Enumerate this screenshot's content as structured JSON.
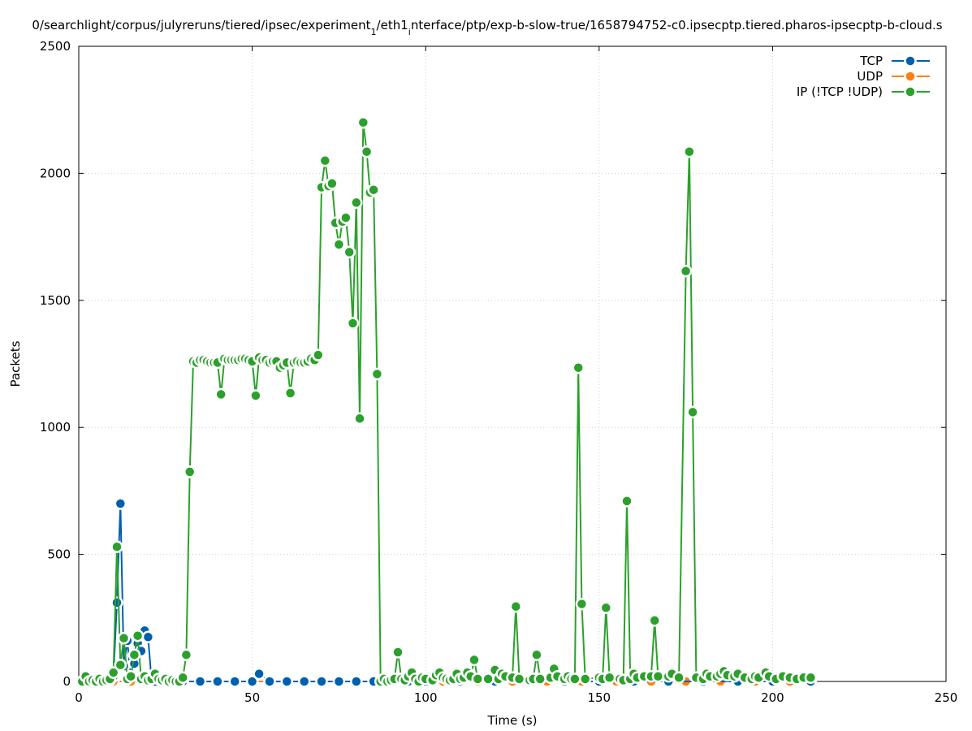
{
  "chart_data": {
    "type": "line",
    "title": "0/searchlight/corpus/julyreruns/tiered/ipsec/experiment_1/eth1_interface/ptp/exp-b-slow-true/1658794752-c0.ipsecptp.tiered.pharos-ipsecptp-b-cloud.s",
    "xlabel": "Time (s)",
    "ylabel": "Packets",
    "xlim": [
      0,
      250
    ],
    "ylim": [
      0,
      2500
    ],
    "xticks": [
      0,
      50,
      100,
      150,
      200,
      250
    ],
    "yticks": [
      0,
      500,
      1000,
      1500,
      2000,
      2500
    ],
    "grid": true,
    "legend_position": "top-right",
    "series": [
      {
        "name": "TCP",
        "color": "#0060ad",
        "points": [
          [
            1,
            0
          ],
          [
            2,
            0
          ],
          [
            3,
            0
          ],
          [
            4,
            0
          ],
          [
            5,
            0
          ],
          [
            6,
            0
          ],
          [
            7,
            0
          ],
          [
            8,
            0
          ],
          [
            9,
            5
          ],
          [
            10,
            20
          ],
          [
            11,
            310
          ],
          [
            12,
            700
          ],
          [
            13,
            60
          ],
          [
            14,
            160
          ],
          [
            15,
            20
          ],
          [
            16,
            70
          ],
          [
            17,
            150
          ],
          [
            18,
            120
          ],
          [
            19,
            200
          ],
          [
            20,
            175
          ],
          [
            21,
            0
          ],
          [
            22,
            0
          ],
          [
            25,
            0
          ],
          [
            30,
            0
          ],
          [
            35,
            0
          ],
          [
            40,
            0
          ],
          [
            45,
            0
          ],
          [
            50,
            0
          ],
          [
            52,
            30
          ],
          [
            55,
            0
          ],
          [
            60,
            0
          ],
          [
            65,
            0
          ],
          [
            70,
            0
          ],
          [
            75,
            0
          ],
          [
            80,
            0
          ],
          [
            85,
            0
          ],
          [
            90,
            0
          ],
          [
            95,
            0
          ],
          [
            100,
            0
          ],
          [
            110,
            0
          ],
          [
            120,
            0
          ],
          [
            130,
            0
          ],
          [
            140,
            0
          ],
          [
            150,
            0
          ],
          [
            160,
            0
          ],
          [
            170,
            0
          ],
          [
            180,
            0
          ],
          [
            190,
            0
          ],
          [
            200,
            0
          ],
          [
            211,
            0
          ]
        ]
      },
      {
        "name": "UDP",
        "color": "#ff7f0e",
        "points": [
          [
            1,
            0
          ],
          [
            5,
            0
          ],
          [
            10,
            0
          ],
          [
            15,
            0
          ],
          [
            20,
            0
          ],
          [
            25,
            0
          ],
          [
            30,
            0
          ],
          [
            35,
            0
          ],
          [
            40,
            0
          ],
          [
            45,
            0
          ],
          [
            50,
            0
          ],
          [
            55,
            0
          ],
          [
            60,
            0
          ],
          [
            65,
            0
          ],
          [
            70,
            0
          ],
          [
            75,
            0
          ],
          [
            80,
            0
          ],
          [
            85,
            0
          ],
          [
            90,
            0
          ],
          [
            95,
            0
          ],
          [
            100,
            0
          ],
          [
            105,
            0
          ],
          [
            110,
            0
          ],
          [
            115,
            0
          ],
          [
            120,
            0
          ],
          [
            125,
            0
          ],
          [
            130,
            0
          ],
          [
            135,
            0
          ],
          [
            140,
            0
          ],
          [
            145,
            0
          ],
          [
            150,
            0
          ],
          [
            155,
            0
          ],
          [
            160,
            0
          ],
          [
            165,
            0
          ],
          [
            170,
            0
          ],
          [
            175,
            0
          ],
          [
            180,
            0
          ],
          [
            185,
            0
          ],
          [
            190,
            0
          ],
          [
            195,
            0
          ],
          [
            200,
            0
          ],
          [
            205,
            0
          ],
          [
            211,
            0
          ]
        ]
      },
      {
        "name": "IP (!TCP  !UDP)",
        "color": "#2ca02c",
        "points": [
          [
            1,
            0
          ],
          [
            2,
            20
          ],
          [
            3,
            0
          ],
          [
            4,
            5
          ],
          [
            5,
            0
          ],
          [
            6,
            10
          ],
          [
            7,
            0
          ],
          [
            8,
            5
          ],
          [
            9,
            10
          ],
          [
            10,
            35
          ],
          [
            11,
            530
          ],
          [
            12,
            65
          ],
          [
            13,
            170
          ],
          [
            14,
            10
          ],
          [
            15,
            20
          ],
          [
            16,
            105
          ],
          [
            17,
            180
          ],
          [
            18,
            10
          ],
          [
            19,
            20
          ],
          [
            20,
            5
          ],
          [
            21,
            10
          ],
          [
            22,
            30
          ],
          [
            23,
            10
          ],
          [
            24,
            5
          ],
          [
            25,
            10
          ],
          [
            26,
            0
          ],
          [
            27,
            5
          ],
          [
            28,
            0
          ],
          [
            29,
            0
          ],
          [
            30,
            15
          ],
          [
            31,
            105
          ],
          [
            32,
            825
          ],
          [
            33,
            1260
          ],
          [
            34,
            1255
          ],
          [
            35,
            1265
          ],
          [
            36,
            1265
          ],
          [
            37,
            1260
          ],
          [
            38,
            1255
          ],
          [
            39,
            1255
          ],
          [
            40,
            1255
          ],
          [
            41,
            1130
          ],
          [
            42,
            1270
          ],
          [
            43,
            1265
          ],
          [
            44,
            1265
          ],
          [
            45,
            1265
          ],
          [
            46,
            1265
          ],
          [
            47,
            1270
          ],
          [
            48,
            1270
          ],
          [
            49,
            1265
          ],
          [
            50,
            1260
          ],
          [
            51,
            1125
          ],
          [
            52,
            1275
          ],
          [
            53,
            1265
          ],
          [
            54,
            1265
          ],
          [
            55,
            1255
          ],
          [
            56,
            1260
          ],
          [
            57,
            1260
          ],
          [
            58,
            1235
          ],
          [
            59,
            1245
          ],
          [
            60,
            1255
          ],
          [
            61,
            1135
          ],
          [
            62,
            1255
          ],
          [
            63,
            1260
          ],
          [
            64,
            1255
          ],
          [
            65,
            1255
          ],
          [
            66,
            1260
          ],
          [
            67,
            1270
          ],
          [
            68,
            1265
          ],
          [
            69,
            1285
          ],
          [
            70,
            1945
          ],
          [
            71,
            2050
          ],
          [
            72,
            1950
          ],
          [
            73,
            1960
          ],
          [
            74,
            1805
          ],
          [
            75,
            1720
          ],
          [
            76,
            1810
          ],
          [
            77,
            1825
          ],
          [
            78,
            1690
          ],
          [
            79,
            1410
          ],
          [
            80,
            1885
          ],
          [
            81,
            1035
          ],
          [
            82,
            2200
          ],
          [
            83,
            2085
          ],
          [
            84,
            1925
          ],
          [
            85,
            1935
          ],
          [
            86,
            1210
          ],
          [
            87,
            0
          ],
          [
            88,
            10
          ],
          [
            89,
            0
          ],
          [
            90,
            5
          ],
          [
            91,
            10
          ],
          [
            92,
            115
          ],
          [
            93,
            10
          ],
          [
            94,
            5
          ],
          [
            95,
            20
          ],
          [
            96,
            35
          ],
          [
            97,
            10
          ],
          [
            98,
            0
          ],
          [
            99,
            15
          ],
          [
            100,
            10
          ],
          [
            102,
            5
          ],
          [
            103,
            25
          ],
          [
            104,
            35
          ],
          [
            105,
            15
          ],
          [
            106,
            10
          ],
          [
            107,
            5
          ],
          [
            108,
            10
          ],
          [
            109,
            30
          ],
          [
            110,
            10
          ],
          [
            111,
            15
          ],
          [
            112,
            35
          ],
          [
            113,
            20
          ],
          [
            114,
            85
          ],
          [
            115,
            10
          ],
          [
            118,
            10
          ],
          [
            120,
            45
          ],
          [
            121,
            10
          ],
          [
            122,
            30
          ],
          [
            123,
            20
          ],
          [
            125,
            15
          ],
          [
            126,
            295
          ],
          [
            127,
            10
          ],
          [
            130,
            5
          ],
          [
            131,
            10
          ],
          [
            132,
            105
          ],
          [
            133,
            10
          ],
          [
            136,
            15
          ],
          [
            137,
            50
          ],
          [
            138,
            20
          ],
          [
            140,
            10
          ],
          [
            141,
            20
          ],
          [
            142,
            10
          ],
          [
            143,
            10
          ],
          [
            144,
            1235
          ],
          [
            145,
            305
          ],
          [
            146,
            10
          ],
          [
            150,
            15
          ],
          [
            151,
            10
          ],
          [
            152,
            290
          ],
          [
            153,
            15
          ],
          [
            156,
            10
          ],
          [
            157,
            5
          ],
          [
            158,
            710
          ],
          [
            159,
            10
          ],
          [
            160,
            30
          ],
          [
            161,
            15
          ],
          [
            163,
            20
          ],
          [
            165,
            20
          ],
          [
            166,
            240
          ],
          [
            167,
            20
          ],
          [
            170,
            20
          ],
          [
            171,
            30
          ],
          [
            173,
            15
          ],
          [
            175,
            1615
          ],
          [
            176,
            2085
          ],
          [
            177,
            1060
          ],
          [
            178,
            15
          ],
          [
            180,
            10
          ],
          [
            181,
            30
          ],
          [
            182,
            20
          ],
          [
            184,
            20
          ],
          [
            185,
            30
          ],
          [
            186,
            40
          ],
          [
            187,
            25
          ],
          [
            189,
            20
          ],
          [
            190,
            30
          ],
          [
            192,
            15
          ],
          [
            194,
            10
          ],
          [
            195,
            20
          ],
          [
            196,
            15
          ],
          [
            198,
            35
          ],
          [
            199,
            20
          ],
          [
            201,
            10
          ],
          [
            203,
            20
          ],
          [
            205,
            15
          ],
          [
            207,
            10
          ],
          [
            209,
            15
          ],
          [
            211,
            15
          ]
        ]
      }
    ]
  }
}
